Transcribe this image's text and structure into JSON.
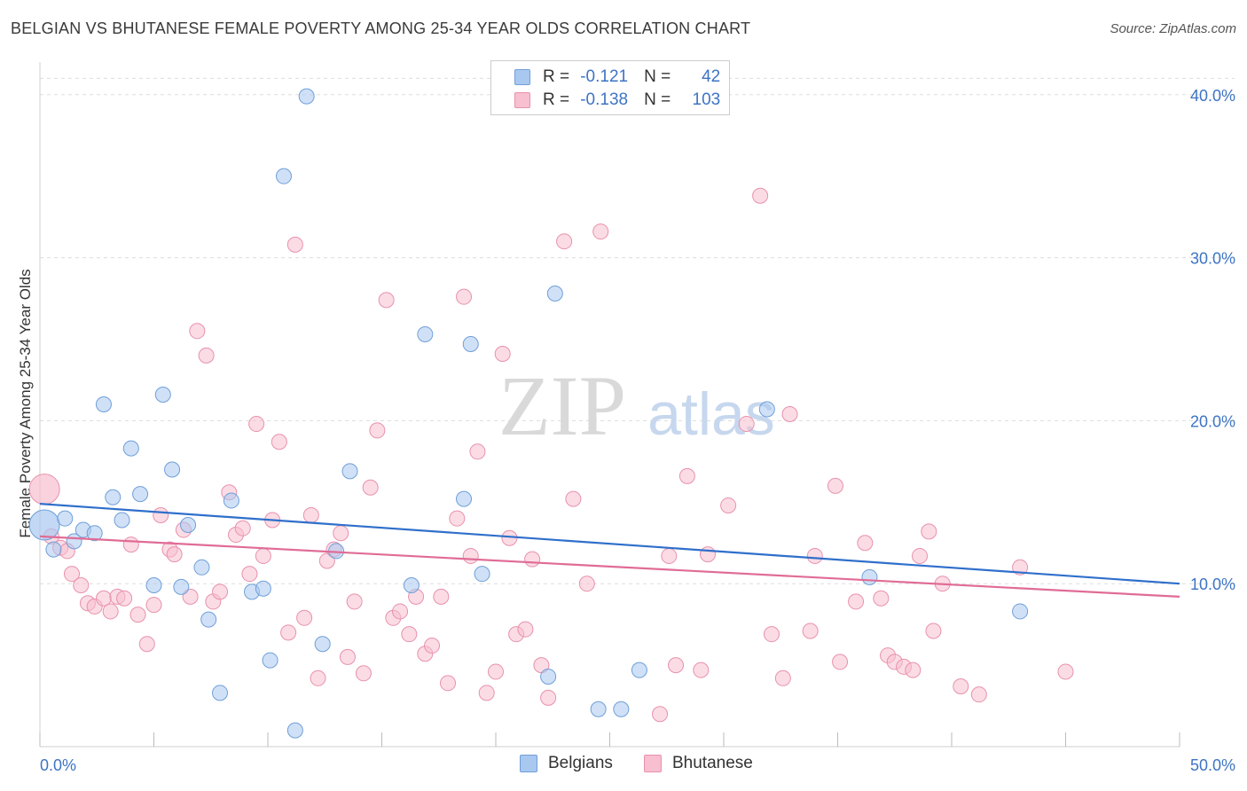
{
  "header": {
    "title": "BELGIAN VS BHUTANESE FEMALE POVERTY AMONG 25-34 YEAR OLDS CORRELATION CHART",
    "source": "Source: ZipAtlas.com"
  },
  "watermark": {
    "zip": "ZIP",
    "atlas": "atlas"
  },
  "legend_top": {
    "rows": [
      {
        "r_label": "R =",
        "r_value": "-0.121",
        "n_label": "N =",
        "n_value": "42"
      },
      {
        "r_label": "R =",
        "r_value": "-0.138",
        "n_label": "N =",
        "n_value": "103"
      }
    ]
  },
  "colors": {
    "belgians_fill": "#a9c8f0",
    "belgians_stroke": "#6f9fd8",
    "belgians_line": "#2f6fcb",
    "bhutanese_fill": "#f7bfd0",
    "bhutanese_stroke": "#e891ad",
    "bhutanese_line": "#e06c96",
    "axis_label": "#3d74c4",
    "grid": "#dddddd"
  },
  "chart_data": {
    "type": "scatter",
    "title": "BELGIAN VS BHUTANESE FEMALE POVERTY AMONG 25-34 YEAR OLDS CORRELATION CHART",
    "xlabel": "",
    "ylabel": "Female Poverty Among 25-34 Year Olds",
    "xlim": [
      0,
      50
    ],
    "ylim": [
      0,
      42
    ],
    "x_tick_labels": [
      "0.0%",
      "50.0%"
    ],
    "y_ticks": [
      10,
      20,
      30,
      40
    ],
    "y_tick_labels": [
      "10.0%",
      "20.0%",
      "30.0%",
      "40.0%"
    ],
    "grid": true,
    "legend_position": "top-center and bottom",
    "series": [
      {
        "name": "Belgians",
        "r": -0.121,
        "n": 42,
        "trend": {
          "x": [
            0,
            50
          ],
          "y": [
            14.9,
            10.0
          ]
        },
        "points": [
          [
            0.2,
            13.6,
            "big"
          ],
          [
            0.6,
            12.1
          ],
          [
            1.1,
            14.0
          ],
          [
            1.5,
            12.6
          ],
          [
            1.9,
            13.3
          ],
          [
            2.4,
            13.1
          ],
          [
            2.8,
            21.0
          ],
          [
            3.2,
            15.3
          ],
          [
            3.6,
            13.9
          ],
          [
            4.0,
            18.3
          ],
          [
            4.4,
            15.5
          ],
          [
            5.0,
            9.9
          ],
          [
            5.4,
            21.6
          ],
          [
            5.8,
            17.0
          ],
          [
            6.2,
            9.8
          ],
          [
            6.5,
            13.6
          ],
          [
            7.1,
            11.0
          ],
          [
            7.4,
            7.8
          ],
          [
            7.9,
            3.3
          ],
          [
            8.4,
            15.1
          ],
          [
            9.3,
            9.5
          ],
          [
            9.8,
            9.7
          ],
          [
            10.1,
            5.3
          ],
          [
            10.7,
            35.0
          ],
          [
            11.2,
            1.0
          ],
          [
            11.7,
            39.9
          ],
          [
            12.4,
            6.3
          ],
          [
            13.0,
            12.0
          ],
          [
            13.6,
            16.9
          ],
          [
            16.3,
            9.9
          ],
          [
            16.9,
            25.3
          ],
          [
            18.6,
            15.2
          ],
          [
            18.9,
            24.7
          ],
          [
            19.4,
            10.6
          ],
          [
            22.3,
            4.3
          ],
          [
            22.6,
            27.8
          ],
          [
            24.5,
            2.3
          ],
          [
            25.5,
            2.3
          ],
          [
            26.3,
            4.7
          ],
          [
            31.9,
            20.7
          ],
          [
            36.4,
            10.4
          ],
          [
            43.0,
            8.3
          ]
        ]
      },
      {
        "name": "Bhutanese",
        "r": -0.138,
        "n": 103,
        "trend": {
          "x": [
            0,
            50
          ],
          "y": [
            12.9,
            9.2
          ]
        },
        "points": [
          [
            0.2,
            15.8,
            "big"
          ],
          [
            0.5,
            12.9
          ],
          [
            0.9,
            12.2
          ],
          [
            1.2,
            12.0
          ],
          [
            1.4,
            10.6
          ],
          [
            1.8,
            9.9
          ],
          [
            2.1,
            8.8
          ],
          [
            2.4,
            8.6
          ],
          [
            2.8,
            9.1
          ],
          [
            3.1,
            8.3
          ],
          [
            3.4,
            9.2
          ],
          [
            3.7,
            9.1
          ],
          [
            4.0,
            12.4
          ],
          [
            4.3,
            8.1
          ],
          [
            4.7,
            6.3
          ],
          [
            5.0,
            8.7
          ],
          [
            5.3,
            14.2
          ],
          [
            5.7,
            12.1
          ],
          [
            5.9,
            11.8
          ],
          [
            6.3,
            13.3
          ],
          [
            6.6,
            9.2
          ],
          [
            6.9,
            25.5
          ],
          [
            7.3,
            24.0
          ],
          [
            7.6,
            8.9
          ],
          [
            7.9,
            9.5
          ],
          [
            8.3,
            15.6
          ],
          [
            8.6,
            13.0
          ],
          [
            8.9,
            13.4
          ],
          [
            9.2,
            10.6
          ],
          [
            9.5,
            19.8
          ],
          [
            9.8,
            11.7
          ],
          [
            10.2,
            13.9
          ],
          [
            10.5,
            18.7
          ],
          [
            10.9,
            7.0
          ],
          [
            11.2,
            30.8
          ],
          [
            11.6,
            7.9
          ],
          [
            11.9,
            14.2
          ],
          [
            12.2,
            4.2
          ],
          [
            12.6,
            11.4
          ],
          [
            12.9,
            12.1
          ],
          [
            13.2,
            13.1
          ],
          [
            13.5,
            5.5
          ],
          [
            13.8,
            8.9
          ],
          [
            14.2,
            4.5
          ],
          [
            14.5,
            15.9
          ],
          [
            14.8,
            19.4
          ],
          [
            15.2,
            27.4
          ],
          [
            15.5,
            7.9
          ],
          [
            15.8,
            8.3
          ],
          [
            16.2,
            6.9
          ],
          [
            16.5,
            9.2
          ],
          [
            16.9,
            5.7
          ],
          [
            17.2,
            6.2
          ],
          [
            17.6,
            9.2
          ],
          [
            17.9,
            3.9
          ],
          [
            18.3,
            14.0
          ],
          [
            18.6,
            27.6
          ],
          [
            18.9,
            11.7
          ],
          [
            19.2,
            18.1
          ],
          [
            19.6,
            3.3
          ],
          [
            20.0,
            4.6
          ],
          [
            20.3,
            24.1
          ],
          [
            20.6,
            12.8
          ],
          [
            20.9,
            6.9
          ],
          [
            21.3,
            7.2
          ],
          [
            21.6,
            11.5
          ],
          [
            22.0,
            5.0
          ],
          [
            22.3,
            3.0
          ],
          [
            23.0,
            31.0
          ],
          [
            23.4,
            15.2
          ],
          [
            24.0,
            10.0
          ],
          [
            24.6,
            31.6
          ],
          [
            27.2,
            2.0
          ],
          [
            27.6,
            11.7
          ],
          [
            27.9,
            5.0
          ],
          [
            28.4,
            16.6
          ],
          [
            29.0,
            4.7
          ],
          [
            29.3,
            11.8
          ],
          [
            30.2,
            14.8
          ],
          [
            31.0,
            19.8
          ],
          [
            31.6,
            33.8
          ],
          [
            32.1,
            6.9
          ],
          [
            32.6,
            4.2
          ],
          [
            32.9,
            20.4
          ],
          [
            33.8,
            7.1
          ],
          [
            34.0,
            11.7
          ],
          [
            34.9,
            16.0
          ],
          [
            35.1,
            5.2
          ],
          [
            35.8,
            8.9
          ],
          [
            36.2,
            12.5
          ],
          [
            36.9,
            9.1
          ],
          [
            37.2,
            5.6
          ],
          [
            37.5,
            5.2
          ],
          [
            37.9,
            4.9
          ],
          [
            38.3,
            4.7
          ],
          [
            38.6,
            11.7
          ],
          [
            39.0,
            13.2
          ],
          [
            39.2,
            7.1
          ],
          [
            39.6,
            10.0
          ],
          [
            40.4,
            3.7
          ],
          [
            41.2,
            3.2
          ],
          [
            43.0,
            11.0
          ],
          [
            45.0,
            4.6
          ]
        ]
      }
    ]
  },
  "legend_bottom": {
    "items": [
      "Belgians",
      "Bhutanese"
    ]
  }
}
